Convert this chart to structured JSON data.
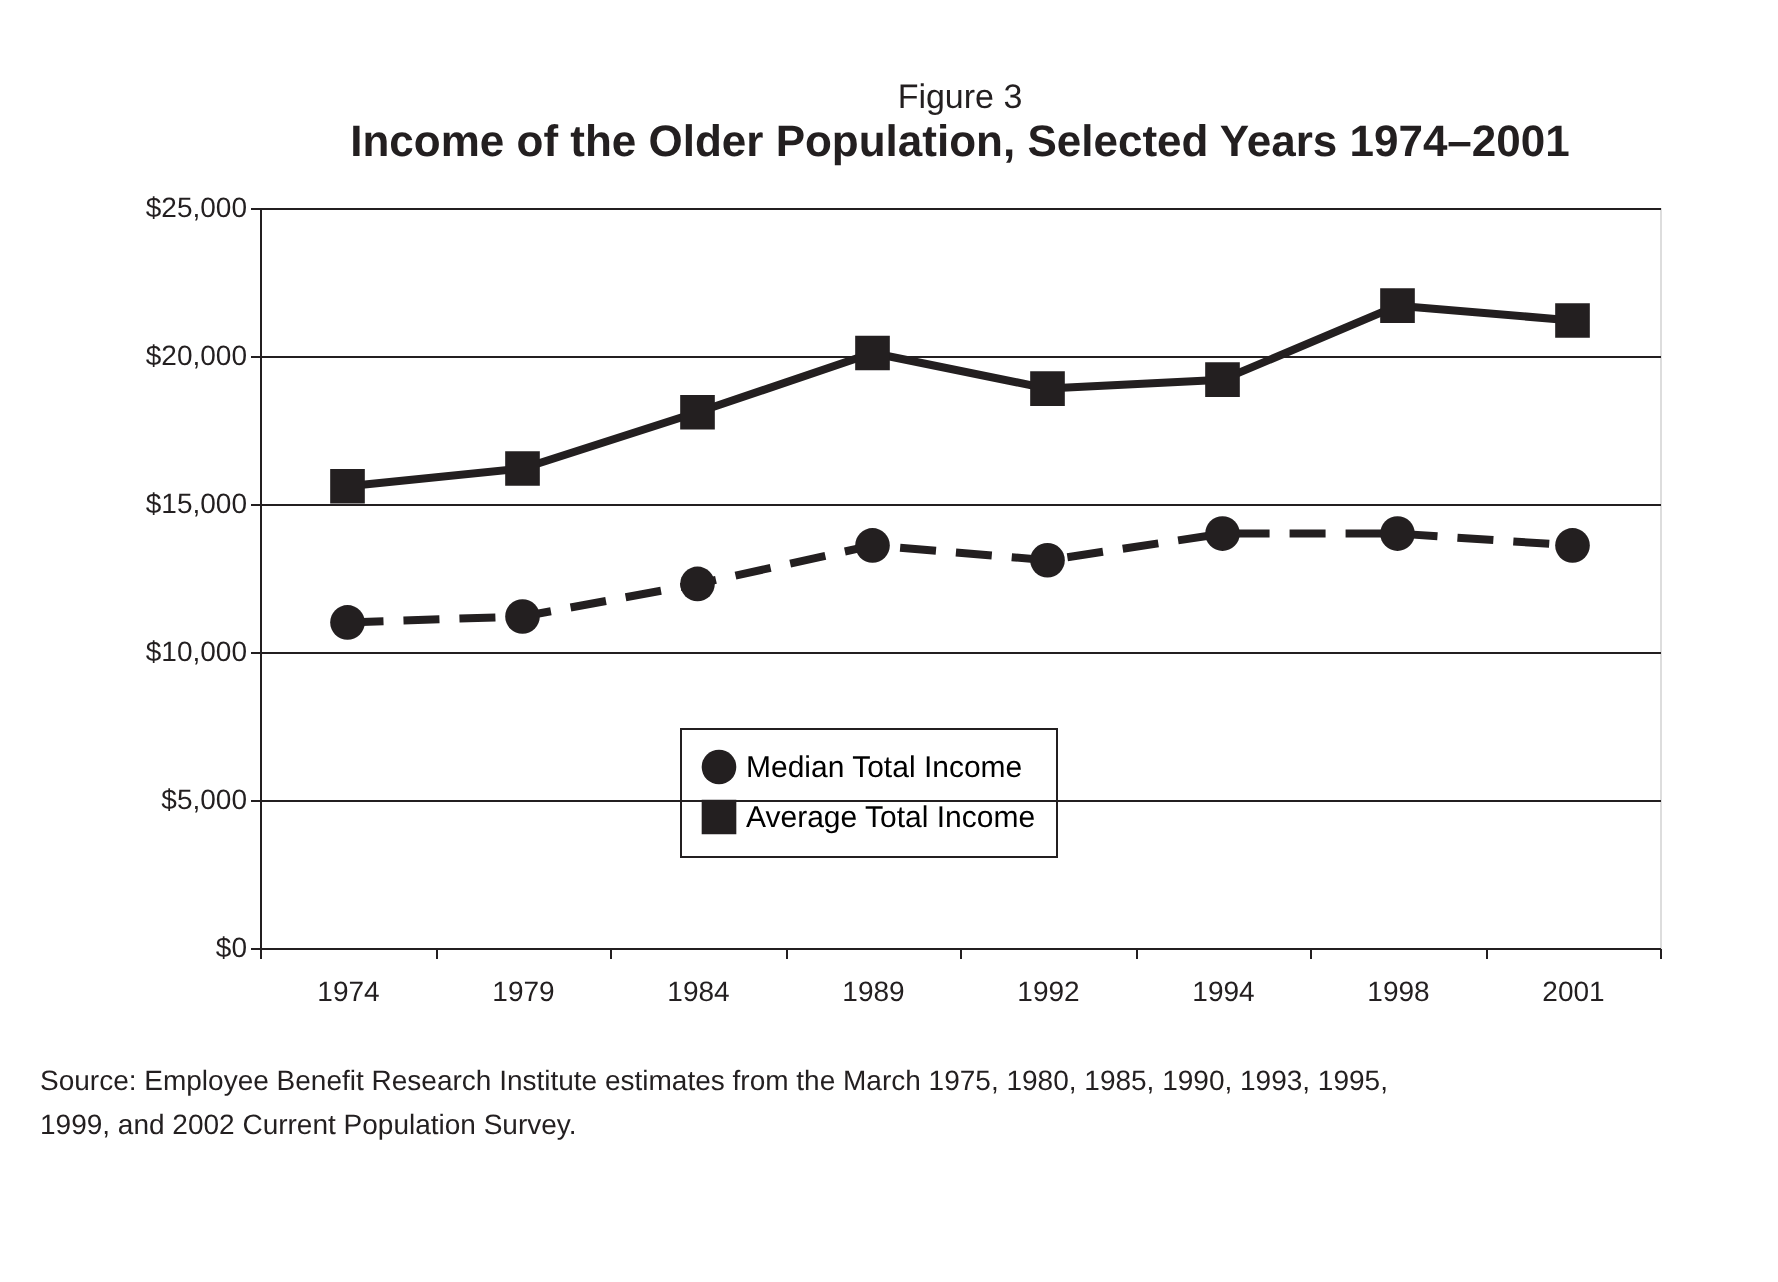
{
  "chart_data": {
    "type": "line",
    "subtitle": "Figure 3",
    "title": "Income of the Older Population, Selected Years 1974–2001",
    "categories": [
      "1974",
      "1979",
      "1984",
      "1989",
      "1992",
      "1994",
      "1998",
      "2001"
    ],
    "series": [
      {
        "name": "Median Total Income",
        "color": "#231f20",
        "marker": "circle",
        "line_style": "dashed",
        "values": [
          11000,
          11200,
          12300,
          13600,
          13100,
          14000,
          14000,
          13600
        ]
      },
      {
        "name": "Average Total Income",
        "color": "#231f20",
        "marker": "square",
        "line_style": "solid",
        "values": [
          15600,
          16200,
          18100,
          20100,
          18900,
          19200,
          21700,
          21200
        ]
      }
    ],
    "ylim": [
      0,
      25000
    ],
    "yticks": [
      {
        "value": 0,
        "label": "$0"
      },
      {
        "value": 5000,
        "label": "$5,000"
      },
      {
        "value": 10000,
        "label": "$10,000"
      },
      {
        "value": 15000,
        "label": "$15,000"
      },
      {
        "value": 20000,
        "label": "$20,000"
      },
      {
        "value": 25000,
        "label": "$25,000"
      }
    ],
    "grid": "y",
    "legend": "bottom",
    "annotations": [
      "Source: Employee Benefit Research Institute estimates from the March 1975, 1980, 1985, 1990, 1993, 1995, 1999, and 2002 Current Population Survey."
    ]
  }
}
